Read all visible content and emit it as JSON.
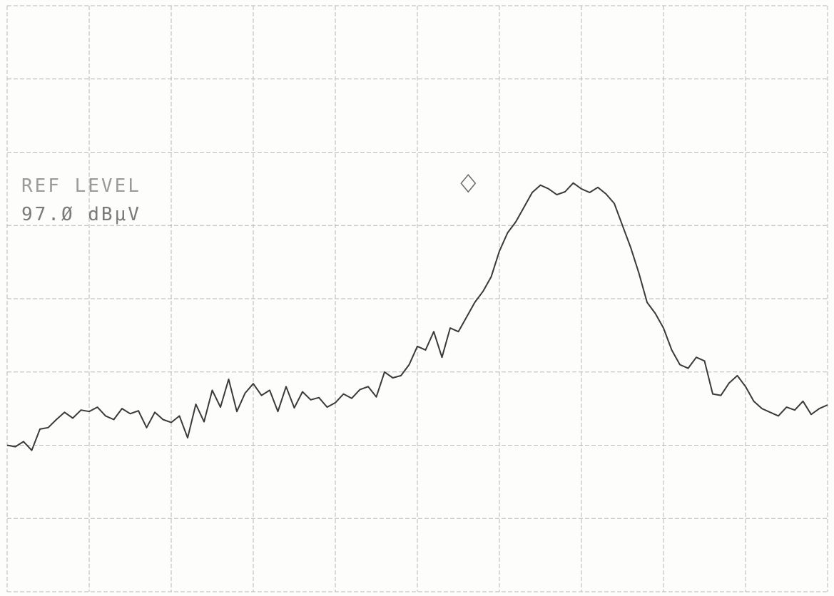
{
  "annotation": {
    "ref_label": "REF LEVEL",
    "ref_value": "97.Ø dBμV"
  },
  "colors": {
    "trace": "#3a3a3a",
    "grid": "#b8b8b8",
    "paper": "#fdfdfb",
    "text": "#7a7a7a"
  },
  "chart_data": {
    "type": "line",
    "title": "",
    "xlabel": "",
    "ylabel": "",
    "grid": true,
    "x_divisions": 10,
    "y_divisions": 8,
    "xlim": [
      0,
      10
    ],
    "ylim": [
      0,
      8
    ],
    "marker": {
      "shape": "diamond",
      "x": 5.62,
      "y": 5.4
    },
    "series": [
      {
        "values_note_units": "grid divisions",
        "x": [
          0.0,
          0.1,
          0.2,
          0.3,
          0.4,
          0.5,
          0.6,
          0.7,
          0.8,
          0.9,
          1.0,
          1.1,
          1.2,
          1.3,
          1.4,
          1.5,
          1.6,
          1.7,
          1.8,
          1.9,
          2.0,
          2.1,
          2.2,
          2.3,
          2.4,
          2.5,
          2.6,
          2.7,
          2.8,
          2.9,
          3.0,
          3.1,
          3.2,
          3.3,
          3.4,
          3.5,
          3.6,
          3.7,
          3.8,
          3.9,
          4.0,
          4.1,
          4.2,
          4.3,
          4.4,
          4.5,
          4.6,
          4.7,
          4.8,
          4.9,
          5.0,
          5.1,
          5.2,
          5.3,
          5.4,
          5.5,
          5.6,
          5.7,
          5.8,
          5.9,
          6.0,
          6.1,
          6.2,
          6.3,
          6.4,
          6.5,
          6.6,
          6.7,
          6.8,
          6.9,
          7.0,
          7.1,
          7.2,
          7.3,
          7.4,
          7.5,
          7.6,
          7.7,
          7.8,
          7.9,
          8.0,
          8.1,
          8.2,
          8.3,
          8.4,
          8.5,
          8.6,
          8.7,
          8.8,
          8.9,
          9.0,
          9.1,
          9.2,
          9.3,
          9.4,
          9.5,
          9.6,
          9.7,
          9.8,
          9.9,
          10.0
        ],
        "y": [
          2.0,
          1.98,
          2.05,
          1.93,
          2.22,
          2.24,
          2.35,
          2.45,
          2.37,
          2.48,
          2.46,
          2.52,
          2.4,
          2.35,
          2.5,
          2.43,
          2.47,
          2.24,
          2.45,
          2.35,
          2.31,
          2.4,
          2.1,
          2.56,
          2.32,
          2.75,
          2.52,
          2.9,
          2.46,
          2.71,
          2.84,
          2.68,
          2.75,
          2.46,
          2.8,
          2.51,
          2.73,
          2.62,
          2.65,
          2.52,
          2.58,
          2.7,
          2.64,
          2.76,
          2.8,
          2.66,
          3.0,
          2.92,
          2.95,
          3.1,
          3.35,
          3.3,
          3.55,
          3.2,
          3.6,
          3.55,
          3.75,
          3.95,
          4.1,
          4.3,
          4.65,
          4.9,
          5.05,
          5.25,
          5.45,
          5.55,
          5.5,
          5.42,
          5.46,
          5.58,
          5.5,
          5.45,
          5.52,
          5.43,
          5.3,
          5.0,
          4.7,
          4.35,
          3.95,
          3.8,
          3.6,
          3.3,
          3.1,
          3.05,
          3.2,
          3.15,
          2.7,
          2.68,
          2.85,
          2.95,
          2.8,
          2.6,
          2.5,
          2.45,
          2.4,
          2.52,
          2.48,
          2.6,
          2.42,
          2.5,
          2.55
        ]
      }
    ]
  }
}
